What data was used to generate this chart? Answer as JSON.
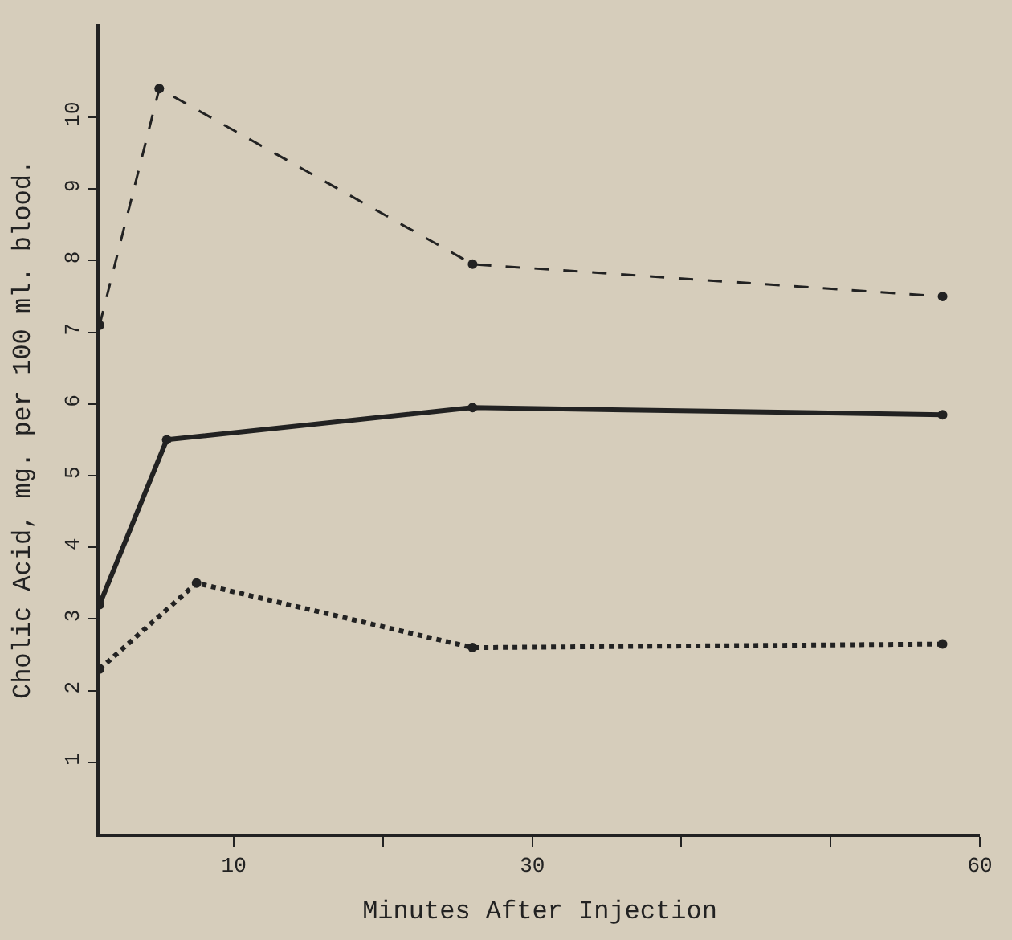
{
  "chart_data": {
    "type": "line",
    "xlabel": "Minutes After Injection",
    "ylabel": "Cholic Acid, mg. per 100 ml. blood.",
    "xlim": [
      1,
      60
    ],
    "xticks": [
      10,
      {
        "value": 20,
        "label": null
      },
      30,
      {
        "value": 40,
        "label": null
      },
      {
        "value": 50,
        "label": null
      },
      60
    ],
    "ylim": [
      0,
      11.3
    ],
    "yticks": [
      1,
      2,
      3,
      4,
      5,
      6,
      7,
      8,
      9,
      10
    ],
    "grid": false,
    "marker": "circle",
    "series": [
      {
        "color": "#222222",
        "line_style": "dashed",
        "x": [
          1,
          5,
          26,
          57.5
        ],
        "values": [
          7.1,
          10.4,
          7.95,
          7.5
        ]
      },
      {
        "color": "#222222",
        "line_style": "solid",
        "x": [
          1,
          5.5,
          26,
          57.5
        ],
        "values": [
          3.2,
          5.5,
          5.95,
          5.85
        ]
      },
      {
        "color": "#222222",
        "line_style": "dotted",
        "x": [
          1,
          7.5,
          26,
          57.5
        ],
        "values": [
          2.3,
          3.5,
          2.6,
          2.65
        ]
      }
    ]
  }
}
